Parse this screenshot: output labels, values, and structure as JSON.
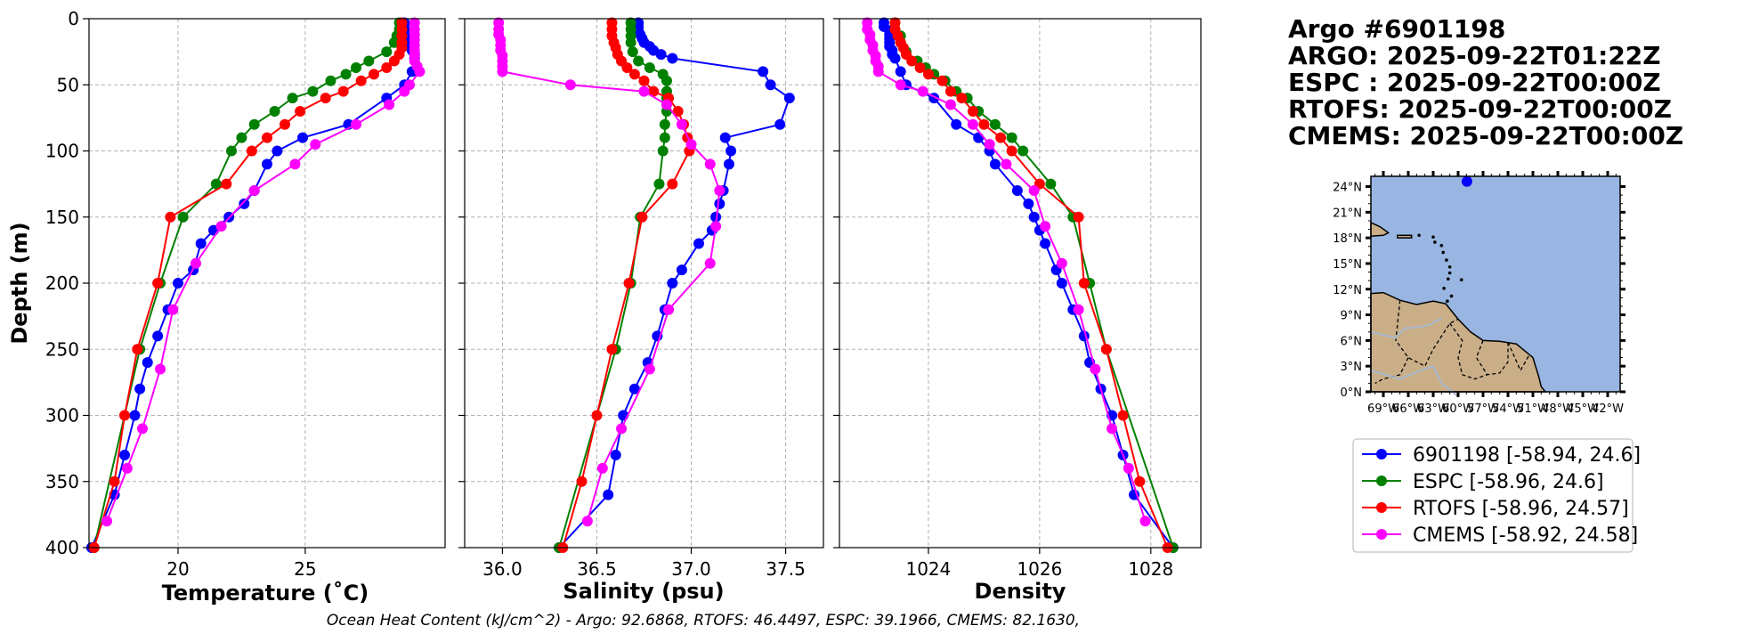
{
  "colors": {
    "argo": "#0000ff",
    "espc": "#008000",
    "rtofs": "#ff0000",
    "cmems": "#ff00ff",
    "ocean": "#98b6e1",
    "land": "#c9ae88",
    "grid": "#b0b0b0"
  },
  "header": {
    "lines": [
      "Argo #6901198",
      "ARGO: 2025-09-22T01:22Z",
      "ESPC : 2025-09-22T00:00Z",
      "RTOFS: 2025-09-22T00:00Z",
      "CMEMS: 2025-09-22T00:00Z"
    ]
  },
  "footer": {
    "text": "Ocean Heat Content (kJ/cm^2) - Argo: 92.6868,  RTOFS: 46.4497,  ESPC: 39.1966,  CMEMS: 82.1630,"
  },
  "legend": {
    "entries": [
      {
        "label": "6901198 [-58.94, 24.6]",
        "key": "argo"
      },
      {
        "label": "ESPC [-58.96, 24.6]",
        "key": "espc"
      },
      {
        "label": "RTOFS [-58.96, 24.57]",
        "key": "rtofs"
      },
      {
        "label": "CMEMS [-58.92, 24.58]",
        "key": "cmems"
      }
    ]
  },
  "inset_map": {
    "lat_labels": [
      "24°N",
      "21°N",
      "18°N",
      "15°N",
      "12°N",
      "9°N",
      "6°N",
      "3°N",
      "0°N"
    ],
    "lon_labels": [
      "69°W",
      "66°W",
      "63°W",
      "60°W",
      "57°W",
      "54°W",
      "51°W",
      "48°W",
      "45°W",
      "42°W"
    ],
    "marker": {
      "lon": -58.94,
      "lat": 24.6
    }
  },
  "chart_data": [
    {
      "type": "line",
      "xlabel": "Temperature (˚C)",
      "ylabel": "Depth (m)",
      "xlim": [
        16.5,
        30.5
      ],
      "ylim": [
        400,
        0
      ],
      "xticks": [
        {
          "v": 20,
          "label": "20"
        },
        {
          "v": 25,
          "label": "25"
        }
      ],
      "yticks": [
        {
          "v": 0,
          "label": "0"
        },
        {
          "v": 50,
          "label": "50"
        },
        {
          "v": 100,
          "label": "100"
        },
        {
          "v": 150,
          "label": "150"
        },
        {
          "v": 200,
          "label": "200"
        },
        {
          "v": 250,
          "label": "250"
        },
        {
          "v": 300,
          "label": "300"
        },
        {
          "v": 350,
          "label": "350"
        },
        {
          "v": 400,
          "label": "400"
        }
      ],
      "series": [
        {
          "name": "6901198",
          "key": "argo",
          "x": [
            28.9,
            28.9,
            28.9,
            28.9,
            29.0,
            29.0,
            29.1,
            29.2,
            29.3,
            29.3,
            29.2,
            28.9,
            28.2,
            26.7,
            24.9,
            23.9,
            23.5,
            23.0,
            22.6,
            22.0,
            21.4,
            20.9,
            20.6,
            20.0,
            19.6,
            19.2,
            18.8,
            18.5,
            18.3,
            17.9,
            17.5,
            16.6
          ],
          "y": [
            3,
            6,
            9,
            12,
            15,
            18,
            21,
            24,
            27,
            30,
            40,
            50,
            60,
            80,
            90,
            100,
            110,
            130,
            140,
            150,
            160,
            170,
            190,
            200,
            220,
            240,
            260,
            280,
            300,
            330,
            360,
            400
          ]
        },
        {
          "name": "ESPC",
          "key": "espc",
          "x": [
            28.7,
            28.7,
            28.6,
            28.5,
            28.2,
            27.5,
            27.0,
            26.6,
            26.0,
            25.3,
            24.5,
            23.8,
            23.0,
            22.5,
            22.1,
            21.5,
            20.2,
            19.3,
            18.5,
            16.7
          ],
          "y": [
            3,
            8,
            13,
            18,
            25,
            32,
            37,
            42,
            47,
            55,
            60,
            70,
            80,
            90,
            100,
            125,
            150,
            200,
            250,
            400
          ]
        },
        {
          "name": "RTOFS",
          "key": "rtofs",
          "x": [
            28.8,
            28.8,
            28.8,
            28.8,
            28.8,
            28.7,
            28.5,
            28.2,
            27.7,
            27.2,
            26.5,
            25.8,
            24.8,
            24.2,
            23.5,
            22.9,
            21.9,
            19.7,
            19.2,
            18.4,
            17.9,
            17.5,
            16.7
          ],
          "y": [
            3,
            8,
            13,
            18,
            22,
            27,
            32,
            37,
            42,
            47,
            55,
            60,
            70,
            80,
            90,
            100,
            125,
            150,
            200,
            250,
            300,
            350,
            400
          ]
        },
        {
          "name": "CMEMS",
          "key": "cmems",
          "x": [
            29.3,
            29.3,
            29.3,
            29.3,
            29.3,
            29.3,
            29.3,
            29.3,
            29.4,
            29.5,
            29.1,
            28.9,
            28.3,
            27.0,
            25.4,
            24.6,
            23.0,
            21.7,
            20.7,
            19.8,
            19.3,
            18.6,
            18.0,
            17.2
          ],
          "y": [
            3,
            8,
            12,
            16,
            20,
            24,
            28,
            32,
            36,
            40,
            50,
            55,
            65,
            80,
            95,
            110,
            130,
            157,
            185,
            220,
            265,
            310,
            340,
            380
          ]
        }
      ]
    },
    {
      "type": "line",
      "xlabel": "Salinity (psu)",
      "ylabel": "",
      "xlim": [
        35.8,
        37.7
      ],
      "ylim": [
        400,
        0
      ],
      "xticks": [
        {
          "v": 36.0,
          "label": "36.0"
        },
        {
          "v": 36.5,
          "label": "36.5"
        },
        {
          "v": 37.0,
          "label": "37.0"
        },
        {
          "v": 37.5,
          "label": "37.5"
        }
      ],
      "series": [
        {
          "name": "6901198",
          "key": "argo",
          "x": [
            36.72,
            36.72,
            36.72,
            36.73,
            36.74,
            36.75,
            36.78,
            36.8,
            36.84,
            36.9,
            37.38,
            37.42,
            37.52,
            37.47,
            37.18,
            37.21,
            37.2,
            37.17,
            37.15,
            37.13,
            37.11,
            37.04,
            36.95,
            36.9,
            36.86,
            36.82,
            36.77,
            36.7,
            36.64,
            36.6,
            36.56,
            36.3
          ],
          "y": [
            3,
            6,
            9,
            12,
            15,
            18,
            21,
            24,
            27,
            30,
            40,
            50,
            60,
            80,
            90,
            100,
            110,
            130,
            140,
            150,
            160,
            170,
            190,
            200,
            220,
            240,
            260,
            280,
            300,
            330,
            360,
            400
          ]
        },
        {
          "name": "ESPC",
          "key": "espc",
          "x": [
            36.68,
            36.68,
            36.68,
            36.68,
            36.69,
            36.72,
            36.78,
            36.85,
            36.87,
            36.87,
            36.87,
            36.87,
            36.86,
            36.86,
            36.85,
            36.83,
            36.73,
            36.68,
            36.6,
            36.3
          ],
          "y": [
            3,
            8,
            13,
            18,
            25,
            32,
            37,
            42,
            47,
            55,
            60,
            70,
            80,
            90,
            100,
            125,
            150,
            200,
            250,
            400
          ]
        },
        {
          "name": "RTOFS",
          "key": "rtofs",
          "x": [
            36.58,
            36.58,
            36.58,
            36.59,
            36.6,
            36.61,
            36.63,
            36.66,
            36.7,
            36.75,
            36.8,
            36.88,
            36.93,
            36.96,
            36.98,
            36.99,
            36.9,
            36.74,
            36.67,
            36.58,
            36.5,
            36.42,
            36.32
          ],
          "y": [
            3,
            8,
            13,
            18,
            22,
            27,
            32,
            37,
            42,
            47,
            55,
            60,
            70,
            80,
            90,
            100,
            125,
            150,
            200,
            250,
            300,
            350,
            400
          ]
        },
        {
          "name": "CMEMS",
          "key": "cmems",
          "x": [
            35.98,
            35.98,
            35.98,
            35.99,
            35.99,
            35.99,
            36.0,
            36.0,
            36.0,
            36.0,
            36.36,
            36.75,
            36.87,
            36.95,
            37.0,
            37.1,
            37.15,
            37.13,
            37.1,
            36.88,
            36.78,
            36.63,
            36.53,
            36.45
          ],
          "y": [
            3,
            8,
            12,
            16,
            20,
            24,
            28,
            32,
            36,
            40,
            50,
            55,
            65,
            80,
            95,
            110,
            130,
            157,
            185,
            220,
            265,
            310,
            340,
            380
          ]
        }
      ]
    },
    {
      "type": "line",
      "xlabel": "Density",
      "ylabel": "",
      "xlim": [
        1022.4,
        1028.9
      ],
      "ylim": [
        400,
        0
      ],
      "xticks": [
        {
          "v": 1024,
          "label": "1024"
        },
        {
          "v": 1026,
          "label": "1026"
        },
        {
          "v": 1028,
          "label": "1028"
        }
      ],
      "series": [
        {
          "name": "6901198",
          "key": "argo",
          "x": [
            1023.2,
            1023.2,
            1023.3,
            1023.3,
            1023.3,
            1023.3,
            1023.3,
            1023.35,
            1023.35,
            1023.4,
            1023.5,
            1023.6,
            1024.1,
            1024.5,
            1024.9,
            1025.1,
            1025.2,
            1025.6,
            1025.8,
            1025.9,
            1026.0,
            1026.1,
            1026.3,
            1026.4,
            1026.6,
            1026.8,
            1026.9,
            1027.1,
            1027.3,
            1027.5,
            1027.7,
            1028.4
          ],
          "y": [
            3,
            6,
            9,
            12,
            15,
            18,
            21,
            24,
            27,
            30,
            40,
            50,
            60,
            80,
            90,
            100,
            110,
            130,
            140,
            150,
            160,
            170,
            190,
            200,
            220,
            240,
            260,
            280,
            300,
            330,
            360,
            400
          ]
        },
        {
          "name": "ESPC",
          "key": "espc",
          "x": [
            1023.4,
            1023.4,
            1023.5,
            1023.5,
            1023.6,
            1023.8,
            1023.95,
            1024.1,
            1024.3,
            1024.5,
            1024.7,
            1024.9,
            1025.2,
            1025.5,
            1025.7,
            1026.2,
            1026.6,
            1026.9,
            1027.2,
            1028.4
          ],
          "y": [
            3,
            8,
            13,
            18,
            25,
            32,
            37,
            42,
            47,
            55,
            60,
            70,
            80,
            90,
            100,
            125,
            150,
            200,
            250,
            400
          ]
        },
        {
          "name": "RTOFS",
          "key": "rtofs",
          "x": [
            1023.4,
            1023.4,
            1023.45,
            1023.5,
            1023.55,
            1023.6,
            1023.7,
            1023.85,
            1024.0,
            1024.25,
            1024.4,
            1024.6,
            1024.8,
            1025.0,
            1025.3,
            1025.5,
            1026.0,
            1026.7,
            1026.8,
            1027.2,
            1027.5,
            1027.8,
            1028.3
          ],
          "y": [
            3,
            8,
            13,
            18,
            22,
            27,
            32,
            37,
            42,
            47,
            55,
            60,
            70,
            80,
            90,
            100,
            125,
            150,
            200,
            250,
            300,
            350,
            400
          ]
        },
        {
          "name": "CMEMS",
          "key": "cmems",
          "x": [
            1022.9,
            1022.9,
            1022.95,
            1022.95,
            1023.0,
            1023.0,
            1023.05,
            1023.05,
            1023.1,
            1023.1,
            1023.5,
            1023.9,
            1024.4,
            1024.8,
            1025.1,
            1025.4,
            1025.9,
            1026.1,
            1026.4,
            1026.7,
            1027.0,
            1027.3,
            1027.6,
            1027.9
          ],
          "y": [
            3,
            8,
            12,
            16,
            20,
            24,
            28,
            32,
            36,
            40,
            50,
            55,
            65,
            80,
            95,
            110,
            130,
            157,
            185,
            220,
            265,
            310,
            340,
            380
          ]
        }
      ]
    }
  ]
}
